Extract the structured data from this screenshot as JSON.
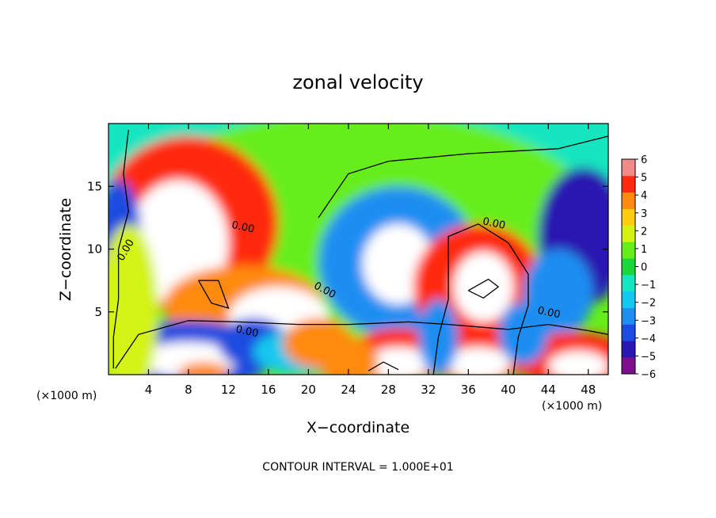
{
  "chart_data": {
    "type": "heatmap",
    "title": "zonal velocity",
    "xlabel": "X−coordinate",
    "ylabel": "Z−coordinate",
    "x_unit_left": "(×1000 m)",
    "x_unit_right": "(×1000 m)",
    "xlim": [
      0,
      50
    ],
    "ylim": [
      0,
      20
    ],
    "x_ticks": [
      4,
      8,
      12,
      16,
      20,
      24,
      28,
      32,
      36,
      40,
      44,
      48
    ],
    "y_ticks": [
      5,
      10,
      15
    ],
    "colorbar": {
      "levels": [
        -6,
        -5,
        -4,
        -3,
        -2,
        -1,
        0,
        1,
        2,
        3,
        4,
        5,
        6
      ],
      "labels": [
        "6",
        "5",
        "4",
        "3",
        "2",
        "1",
        "0",
        "−1",
        "−2",
        "−3",
        "−4",
        "−5",
        "−6"
      ],
      "colors": [
        "#7d0f8f",
        "#2a16b0",
        "#1b4be0",
        "#1e8ef2",
        "#13c8ee",
        "#13e6c0",
        "#18d83a",
        "#66ee1a",
        "#d4f312",
        "#ffcc10",
        "#ff8a10",
        "#ff2a10",
        "#f28a8a"
      ],
      "over_color": "#ffffff"
    },
    "contour_labels": [
      "0.00",
      "0.00",
      "0.00",
      "0.00",
      "0.00",
      "0.00"
    ],
    "footnote": "CONTOUR INTERVAL = 1.000E+01"
  }
}
